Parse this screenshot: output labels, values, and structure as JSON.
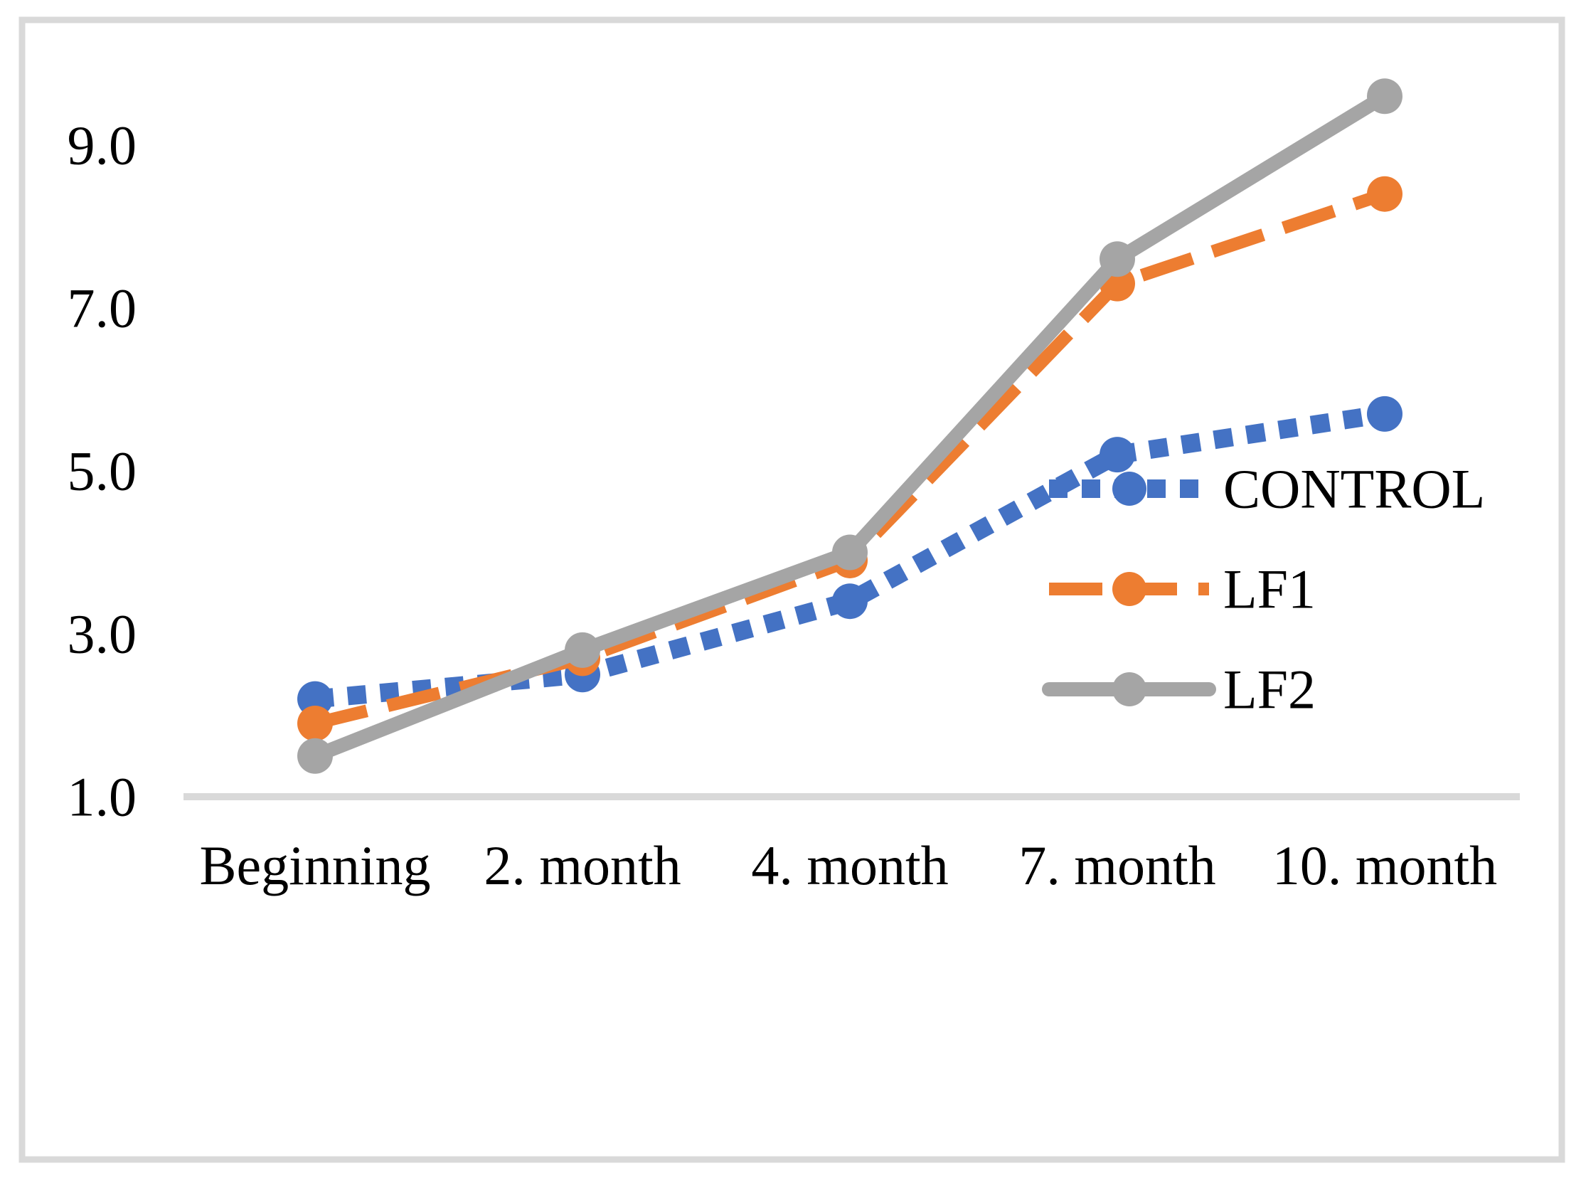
{
  "figure": {
    "background_color": "#FFFFFF",
    "border_color": "#D9D9D9",
    "axis_line_color": "#D9D9D9",
    "text_color": "#000000"
  },
  "chart_data": {
    "type": "line",
    "categories": [
      "Beginning",
      "2. month",
      "4. month",
      "7. month",
      "10. month"
    ],
    "series": [
      {
        "name": "CONTROL",
        "values": [
          2.2,
          2.5,
          3.4,
          5.2,
          5.7
        ],
        "color": "#4472C4",
        "line_style": "dotted",
        "marker": "circle"
      },
      {
        "name": "LF1",
        "values": [
          1.9,
          2.7,
          3.9,
          7.3,
          8.4
        ],
        "color": "#ED7D31",
        "line_style": "dashed",
        "marker": "circle"
      },
      {
        "name": "LF2",
        "values": [
          1.5,
          2.8,
          4.0,
          7.6,
          9.6
        ],
        "color": "#A5A5A5",
        "line_style": "solid",
        "marker": "circle"
      }
    ],
    "y_ticks": [
      {
        "value": 9.0,
        "label": "9.0"
      },
      {
        "value": 7.0,
        "label": "7.0"
      },
      {
        "value": 5.0,
        "label": "5.0"
      },
      {
        "value": 3.0,
        "label": "3.0"
      },
      {
        "value": 1.0,
        "label": "1.0"
      }
    ],
    "ylim": [
      1.0,
      9.8
    ],
    "y_tick_step": 2.0,
    "title": "",
    "xlabel": "",
    "ylabel": "",
    "grid": false,
    "legend_position": "right-middle",
    "legend_entries": [
      "CONTROL",
      "LF1",
      "LF2"
    ]
  }
}
